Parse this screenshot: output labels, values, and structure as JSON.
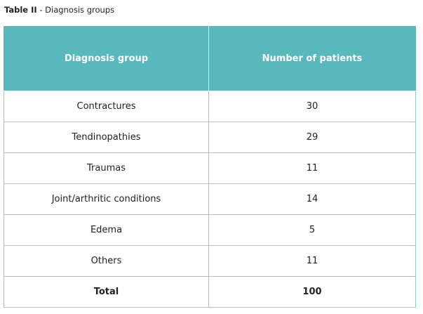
{
  "caption": {
    "label": "Table II",
    "separator": " - ",
    "title": "Diagnosis groups"
  },
  "table": {
    "headers": [
      "Diagnosis group",
      "Number of patients"
    ],
    "rows": [
      {
        "group": "Contractures",
        "patients": "30"
      },
      {
        "group": "Tendinopathies",
        "patients": "29"
      },
      {
        "group": "Traumas",
        "patients": "11"
      },
      {
        "group": "Joint/arthritic conditions",
        "patients": "14"
      },
      {
        "group": "Edema",
        "patients": "5"
      },
      {
        "group": "Others",
        "patients": "11"
      }
    ],
    "total": {
      "group": "Total",
      "patients": "100"
    }
  },
  "colors": {
    "header_background": "#58b8bc",
    "header_text": "#ffffff",
    "grid_border": "#8ccfd3"
  }
}
